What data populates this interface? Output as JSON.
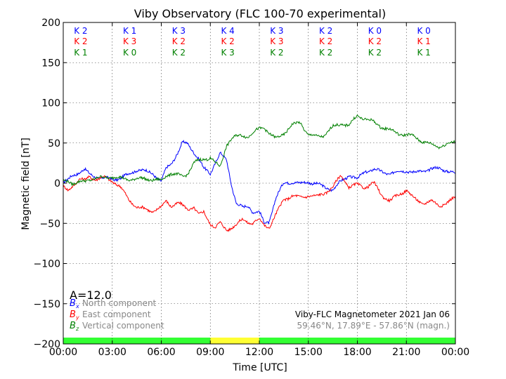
{
  "chart_data": {
    "type": "line",
    "title": "Viby Observatory (FLC 100-70 experimental)",
    "xlabel": "Time [UTC]",
    "ylabel": "Magnetic field [nT]",
    "xlim": [
      0,
      24
    ],
    "ylim": [
      -200,
      200
    ],
    "xticks": [
      "00:00",
      "03:00",
      "06:00",
      "09:00",
      "12:00",
      "15:00",
      "18:00",
      "21:00",
      "00:00"
    ],
    "yticks": [
      "200",
      "150",
      "100",
      "50",
      "0",
      "−50",
      "−100",
      "−150",
      "−200"
    ],
    "grid": true,
    "k_indices": {
      "north": [
        "K 2",
        "K 1",
        "K 3",
        "K 4",
        "K 3",
        "K 2",
        "K 0",
        "K 0"
      ],
      "east": [
        "K 2",
        "K 3",
        "K 2",
        "K 2",
        "K 3",
        "K 2",
        "K 2",
        "K 1"
      ],
      "vertical": [
        "K 1",
        "K 0",
        "K 2",
        "K 3",
        "K 2",
        "K 2",
        "K 2",
        "K 1"
      ]
    },
    "a_index": "A=12.0",
    "legend": {
      "position": "bottom-left",
      "entries": [
        {
          "symbol": "B",
          "sub": "x",
          "text": "North component",
          "color": "#0000ff"
        },
        {
          "symbol": "B",
          "sub": "y",
          "text": "East component",
          "color": "#ff0000"
        },
        {
          "symbol": "B",
          "sub": "z",
          "text": "Vertical component",
          "color": "#008000"
        }
      ]
    },
    "info": {
      "line1": "Viby-FLC Magnetometer 2021 Jan 06",
      "line2": "59.46°N, 17.89°E - 57.86°N (magn.)"
    },
    "activity_bar": [
      {
        "from": 0,
        "to": 9,
        "color": "#33ff33"
      },
      {
        "from": 9,
        "to": 12,
        "color": "#ffff33"
      },
      {
        "from": 12,
        "to": 24,
        "color": "#33ff33"
      }
    ],
    "series": [
      {
        "name": "North component",
        "color": "#0000ff",
        "x": [
          0,
          0.3,
          0.6,
          1.0,
          1.3,
          1.6,
          2.0,
          2.5,
          3.0,
          3.5,
          4.0,
          4.5,
          5.0,
          5.5,
          6.0,
          6.3,
          6.6,
          7.0,
          7.3,
          7.6,
          8.0,
          8.3,
          8.6,
          9.0,
          9.3,
          9.6,
          10.0,
          10.3,
          10.6,
          11.0,
          11.3,
          11.6,
          12.0,
          12.3,
          12.6,
          13.0,
          13.5,
          14.0,
          14.5,
          15.0,
          15.5,
          16.0,
          16.5,
          17.0,
          17.5,
          18.0,
          18.5,
          19.0,
          19.5,
          20.0,
          20.5,
          21.0,
          21.5,
          22.0,
          22.5,
          23.0,
          23.5,
          24.0
        ],
        "y": [
          0,
          4,
          10,
          14,
          17,
          11,
          8,
          6,
          5,
          6,
          11,
          17,
          15,
          12,
          2,
          18,
          24,
          38,
          50,
          49,
          39,
          30,
          18,
          12,
          26,
          37,
          28,
          -2,
          -25,
          -31,
          -28,
          -35,
          -36,
          -50,
          -48,
          -19,
          0,
          2,
          -1,
          2,
          -1,
          -5,
          -8,
          2,
          10,
          5,
          15,
          17,
          14,
          12,
          14,
          16,
          13,
          15,
          18,
          18,
          16,
          12
        ]
      },
      {
        "name": "East component",
        "color": "#ff0000",
        "x": [
          0,
          0.3,
          0.6,
          1.0,
          1.3,
          1.6,
          2.0,
          2.5,
          3.0,
          3.5,
          4.0,
          4.5,
          5.0,
          5.5,
          6.0,
          6.3,
          6.6,
          7.0,
          7.3,
          7.6,
          8.0,
          8.3,
          8.6,
          9.0,
          9.3,
          9.6,
          10.0,
          10.3,
          10.6,
          11.0,
          11.3,
          11.6,
          12.0,
          12.3,
          12.6,
          13.0,
          13.5,
          14.0,
          14.5,
          15.0,
          15.5,
          16.0,
          16.5,
          17.0,
          17.5,
          18.0,
          18.5,
          19.0,
          19.5,
          20.0,
          20.5,
          21.0,
          21.5,
          22.0,
          22.5,
          23.0,
          23.5,
          24.0
        ],
        "y": [
          -5,
          -10,
          -2,
          5,
          3,
          8,
          5,
          7,
          3,
          -5,
          -20,
          -30,
          -32,
          -35,
          -30,
          -22,
          -28,
          -25,
          -28,
          -32,
          -30,
          -40,
          -36,
          -50,
          -55,
          -50,
          -58,
          -55,
          -52,
          -45,
          -48,
          -50,
          -45,
          -52,
          -55,
          -40,
          -20,
          -16,
          -18,
          -15,
          -17,
          -12,
          -5,
          10,
          -5,
          -2,
          -5,
          0,
          -15,
          -22,
          -15,
          -8,
          -20,
          -25,
          -22,
          -28,
          -24,
          -18
        ]
      },
      {
        "name": "Vertical component",
        "color": "#008000",
        "x": [
          0,
          0.3,
          0.6,
          1.0,
          1.3,
          1.6,
          2.0,
          2.5,
          3.0,
          3.5,
          4.0,
          4.5,
          5.0,
          5.5,
          6.0,
          6.3,
          6.6,
          7.0,
          7.3,
          7.6,
          8.0,
          8.3,
          8.6,
          9.0,
          9.3,
          9.6,
          10.0,
          10.3,
          10.6,
          11.0,
          11.3,
          11.6,
          12.0,
          12.3,
          12.6,
          13.0,
          13.5,
          14.0,
          14.5,
          15.0,
          15.5,
          16.0,
          16.5,
          17.0,
          17.5,
          18.0,
          18.5,
          19.0,
          19.5,
          20.0,
          20.5,
          21.0,
          21.5,
          22.0,
          22.5,
          23.0,
          23.5,
          24.0
        ],
        "y": [
          2,
          3,
          0,
          1,
          2,
          5,
          6,
          7,
          8,
          6,
          5,
          5,
          6,
          4,
          3,
          10,
          12,
          10,
          8,
          12,
          25,
          28,
          30,
          32,
          25,
          20,
          48,
          55,
          58,
          60,
          58,
          62,
          68,
          70,
          62,
          55,
          62,
          72,
          76,
          60,
          58,
          60,
          70,
          74,
          72,
          84,
          80,
          76,
          70,
          66,
          62,
          60,
          58,
          52,
          48,
          46,
          48,
          52
        ]
      }
    ]
  }
}
